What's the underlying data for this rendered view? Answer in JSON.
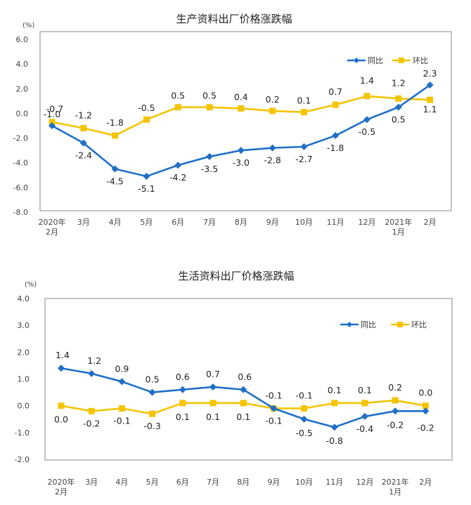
{
  "chart_data": [
    {
      "type": "line",
      "title": "生产资料出厂价格涨跌幅",
      "ylabel": "(%)",
      "ylim": [
        -8,
        6
      ],
      "yticks": [
        "6.0",
        "4.0",
        "2.0",
        "0.0",
        "-2.0",
        "-4.0",
        "-6.0",
        "-8.0"
      ],
      "ytick_values": [
        6,
        4,
        2,
        0,
        -2,
        -4,
        -6,
        -8
      ],
      "categories": [
        [
          "2020年",
          "2月"
        ],
        [
          "3月"
        ],
        [
          "4月"
        ],
        [
          "5月"
        ],
        [
          "6月"
        ],
        [
          "7月"
        ],
        [
          "8月"
        ],
        [
          "9月"
        ],
        [
          "10月"
        ],
        [
          "11月"
        ],
        [
          "12月"
        ],
        [
          "2021年",
          "1月"
        ],
        [
          "2月"
        ]
      ],
      "legend_position": "top-right",
      "series": [
        {
          "name": "同比",
          "color": "#1f6fc8",
          "marker": "diamond",
          "values": [
            -1.0,
            -2.4,
            -4.5,
            -5.1,
            -4.2,
            -3.5,
            -3.0,
            -2.8,
            -2.7,
            -1.8,
            -0.5,
            0.5,
            2.3
          ],
          "labels": [
            "-1.0",
            "-2.4",
            "-4.5",
            "-5.1",
            "-4.2",
            "-3.5",
            "-3.0",
            "-2.8",
            "-2.7",
            "-1.8",
            "-0.5",
            "0.5",
            "2.3"
          ]
        },
        {
          "name": "环比",
          "color": "#f5c400",
          "marker": "square",
          "values": [
            -0.7,
            -1.2,
            -1.8,
            -0.5,
            0.5,
            0.5,
            0.4,
            0.2,
            0.1,
            0.7,
            1.4,
            1.2,
            1.1
          ],
          "labels": [
            "-0.7",
            "-1.2",
            "-1.8",
            "-0.5",
            "0.5",
            "0.5",
            "0.4",
            "0.2",
            "0.1",
            "0.7",
            "1.4",
            "1.2",
            "1.1"
          ]
        }
      ]
    },
    {
      "type": "line",
      "title": "生活资料出厂价格涨跌幅",
      "ylabel": "(%)",
      "ylim": [
        -2,
        4
      ],
      "yticks": [
        "4.0",
        "3.0",
        "2.0",
        "1.0",
        "0.0",
        "-1.0",
        "-2.0"
      ],
      "ytick_values": [
        4,
        3,
        2,
        1,
        0,
        -1,
        -2
      ],
      "categories": [
        [
          "2020年",
          "2月"
        ],
        [
          "3月"
        ],
        [
          "4月"
        ],
        [
          "5月"
        ],
        [
          "6月"
        ],
        [
          "7月"
        ],
        [
          "8月"
        ],
        [
          "9月"
        ],
        [
          "10月"
        ],
        [
          "11月"
        ],
        [
          "12月"
        ],
        [
          "2021年",
          "1月"
        ],
        [
          "2月"
        ]
      ],
      "legend_position": "top-right",
      "series": [
        {
          "name": "同比",
          "color": "#1f6fc8",
          "marker": "diamond",
          "values": [
            1.4,
            1.2,
            0.9,
            0.5,
            0.6,
            0.7,
            0.6,
            -0.1,
            -0.5,
            -0.8,
            -0.4,
            -0.2,
            -0.2
          ],
          "labels": [
            "1.4",
            "1.2",
            "0.9",
            "0.5",
            "0.6",
            "0.7",
            "0.6",
            "-0.1",
            "-0.5",
            "-0.8",
            "-0.4",
            "-0.2",
            "-0.2"
          ]
        },
        {
          "name": "环比",
          "color": "#f5c400",
          "marker": "square",
          "values": [
            0.0,
            -0.2,
            -0.1,
            -0.3,
            0.1,
            0.1,
            0.1,
            -0.1,
            -0.1,
            0.1,
            0.1,
            0.2,
            0.0
          ],
          "labels": [
            "0.0",
            "-0.2",
            "-0.1",
            "-0.3",
            "0.1",
            "0.1",
            "0.1",
            "-0.1",
            "-0.1",
            "0.1",
            "0.1",
            "0.2",
            "0.0"
          ]
        }
      ]
    }
  ]
}
